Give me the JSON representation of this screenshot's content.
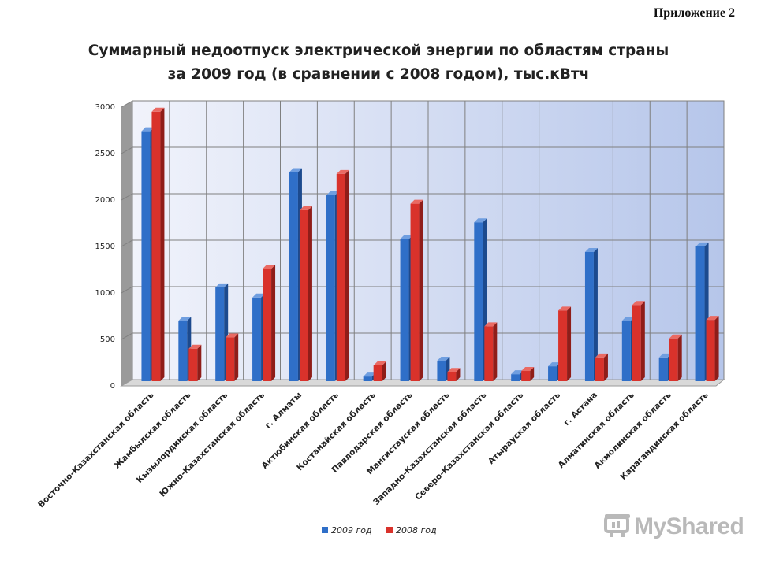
{
  "appendix_label": "Приложение 2",
  "title_lines": [
    "Суммарный недоотпуск электрической энергии по областям страны",
    "за 2009 год (в сравнении с 2008 годом), тыс.кВтч"
  ],
  "colors": {
    "series_2009": "#2f6fc8",
    "series_2009_dark": "#1c4a8e",
    "series_2008": "#d9322b",
    "series_2008_dark": "#8f1d19",
    "plot_bg_left": "#f1f3fb",
    "plot_bg_right": "#b6c6ea",
    "grid": "#7f7f7f"
  },
  "logo": {
    "text": "MyShared",
    "icon": "presentation-board-icon"
  },
  "chart_data": {
    "type": "bar",
    "style": "3d-clustered",
    "title": "Суммарный недоотпуск электрической энергии по областям страны за 2009 год (в сравнении с 2008 годом), тыс.кВтч",
    "categories": [
      "Восточно-Казахстанская область",
      "Жамбылская область",
      "Кызылординская область",
      "Южно-Казахстанская область",
      "г. Алматы",
      "Актюбинская область",
      "Костанайская область",
      "Павлодарская область",
      "Мангистауская область",
      "Западно-Казахстанская область",
      "Северо-Казахстанская область",
      "Атырауская область",
      "г. Астана",
      "Алматинская область",
      "Акмолинская область",
      "Карагандинская область"
    ],
    "series": [
      {
        "name": "2009 год",
        "values": [
          2690,
          650,
          1010,
          900,
          2250,
          2000,
          50,
          1530,
          220,
          1710,
          75,
          160,
          1390,
          650,
          255,
          1450
        ]
      },
      {
        "name": "2008 год",
        "values": [
          2900,
          350,
          470,
          1210,
          1840,
          2230,
          170,
          1910,
          100,
          590,
          110,
          760,
          255,
          820,
          460,
          660
        ]
      }
    ],
    "ylim": [
      0,
      3000
    ],
    "yticks": [
      0,
      500,
      1000,
      1500,
      2000,
      2500,
      3000
    ],
    "grid": true,
    "legend": "bottom"
  }
}
